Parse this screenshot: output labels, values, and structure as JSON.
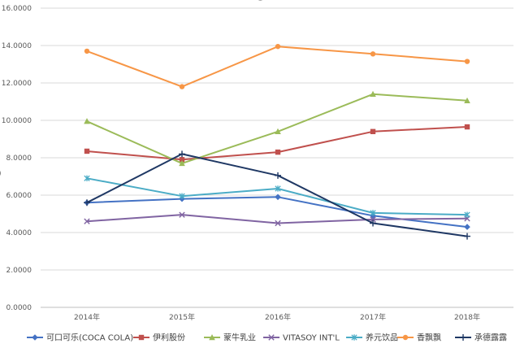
{
  "chart_data": {
    "type": "line",
    "title_fragment": "g",
    "categories": [
      "2014年",
      "2015年",
      "2016年",
      "2017年",
      "2018年"
    ],
    "ylim": [
      0,
      16
    ],
    "yticks": [
      "0.0000",
      "2.0000",
      "4.0000",
      "6.0000",
      "8.0000",
      "10.0000",
      "12.0000",
      "14.0000",
      "16.0000"
    ],
    "ylabel_fragment": ")",
    "grid": true,
    "legend_position": "bottom",
    "series": [
      {
        "name": "可口可乐(COCA COLA)",
        "color": "#4472C4",
        "marker": "diamond",
        "values": [
          5.6,
          5.8,
          5.9,
          4.9,
          4.3
        ]
      },
      {
        "name": "伊利股份",
        "color": "#C0504D",
        "marker": "square",
        "values": [
          8.35,
          7.9,
          8.3,
          9.4,
          9.65
        ]
      },
      {
        "name": "蒙牛乳业",
        "color": "#9BBB59",
        "marker": "triangle",
        "values": [
          9.95,
          7.7,
          9.4,
          11.4,
          11.05
        ]
      },
      {
        "name": "VITASOY INT'L",
        "color": "#8064A2",
        "marker": "x",
        "values": [
          4.6,
          4.95,
          4.5,
          4.7,
          4.75
        ]
      },
      {
        "name": "养元饮品",
        "color": "#4BACC6",
        "marker": "asterisk",
        "values": [
          6.9,
          5.95,
          6.35,
          5.05,
          4.95
        ]
      },
      {
        "name": "香飘飘",
        "color": "#F79646",
        "marker": "circle",
        "values": [
          13.7,
          11.8,
          13.95,
          13.55,
          13.15
        ]
      },
      {
        "name": "承德露露",
        "color": "#1F3864",
        "marker": "plus",
        "values": [
          5.6,
          8.2,
          7.05,
          4.5,
          3.8
        ]
      }
    ]
  }
}
